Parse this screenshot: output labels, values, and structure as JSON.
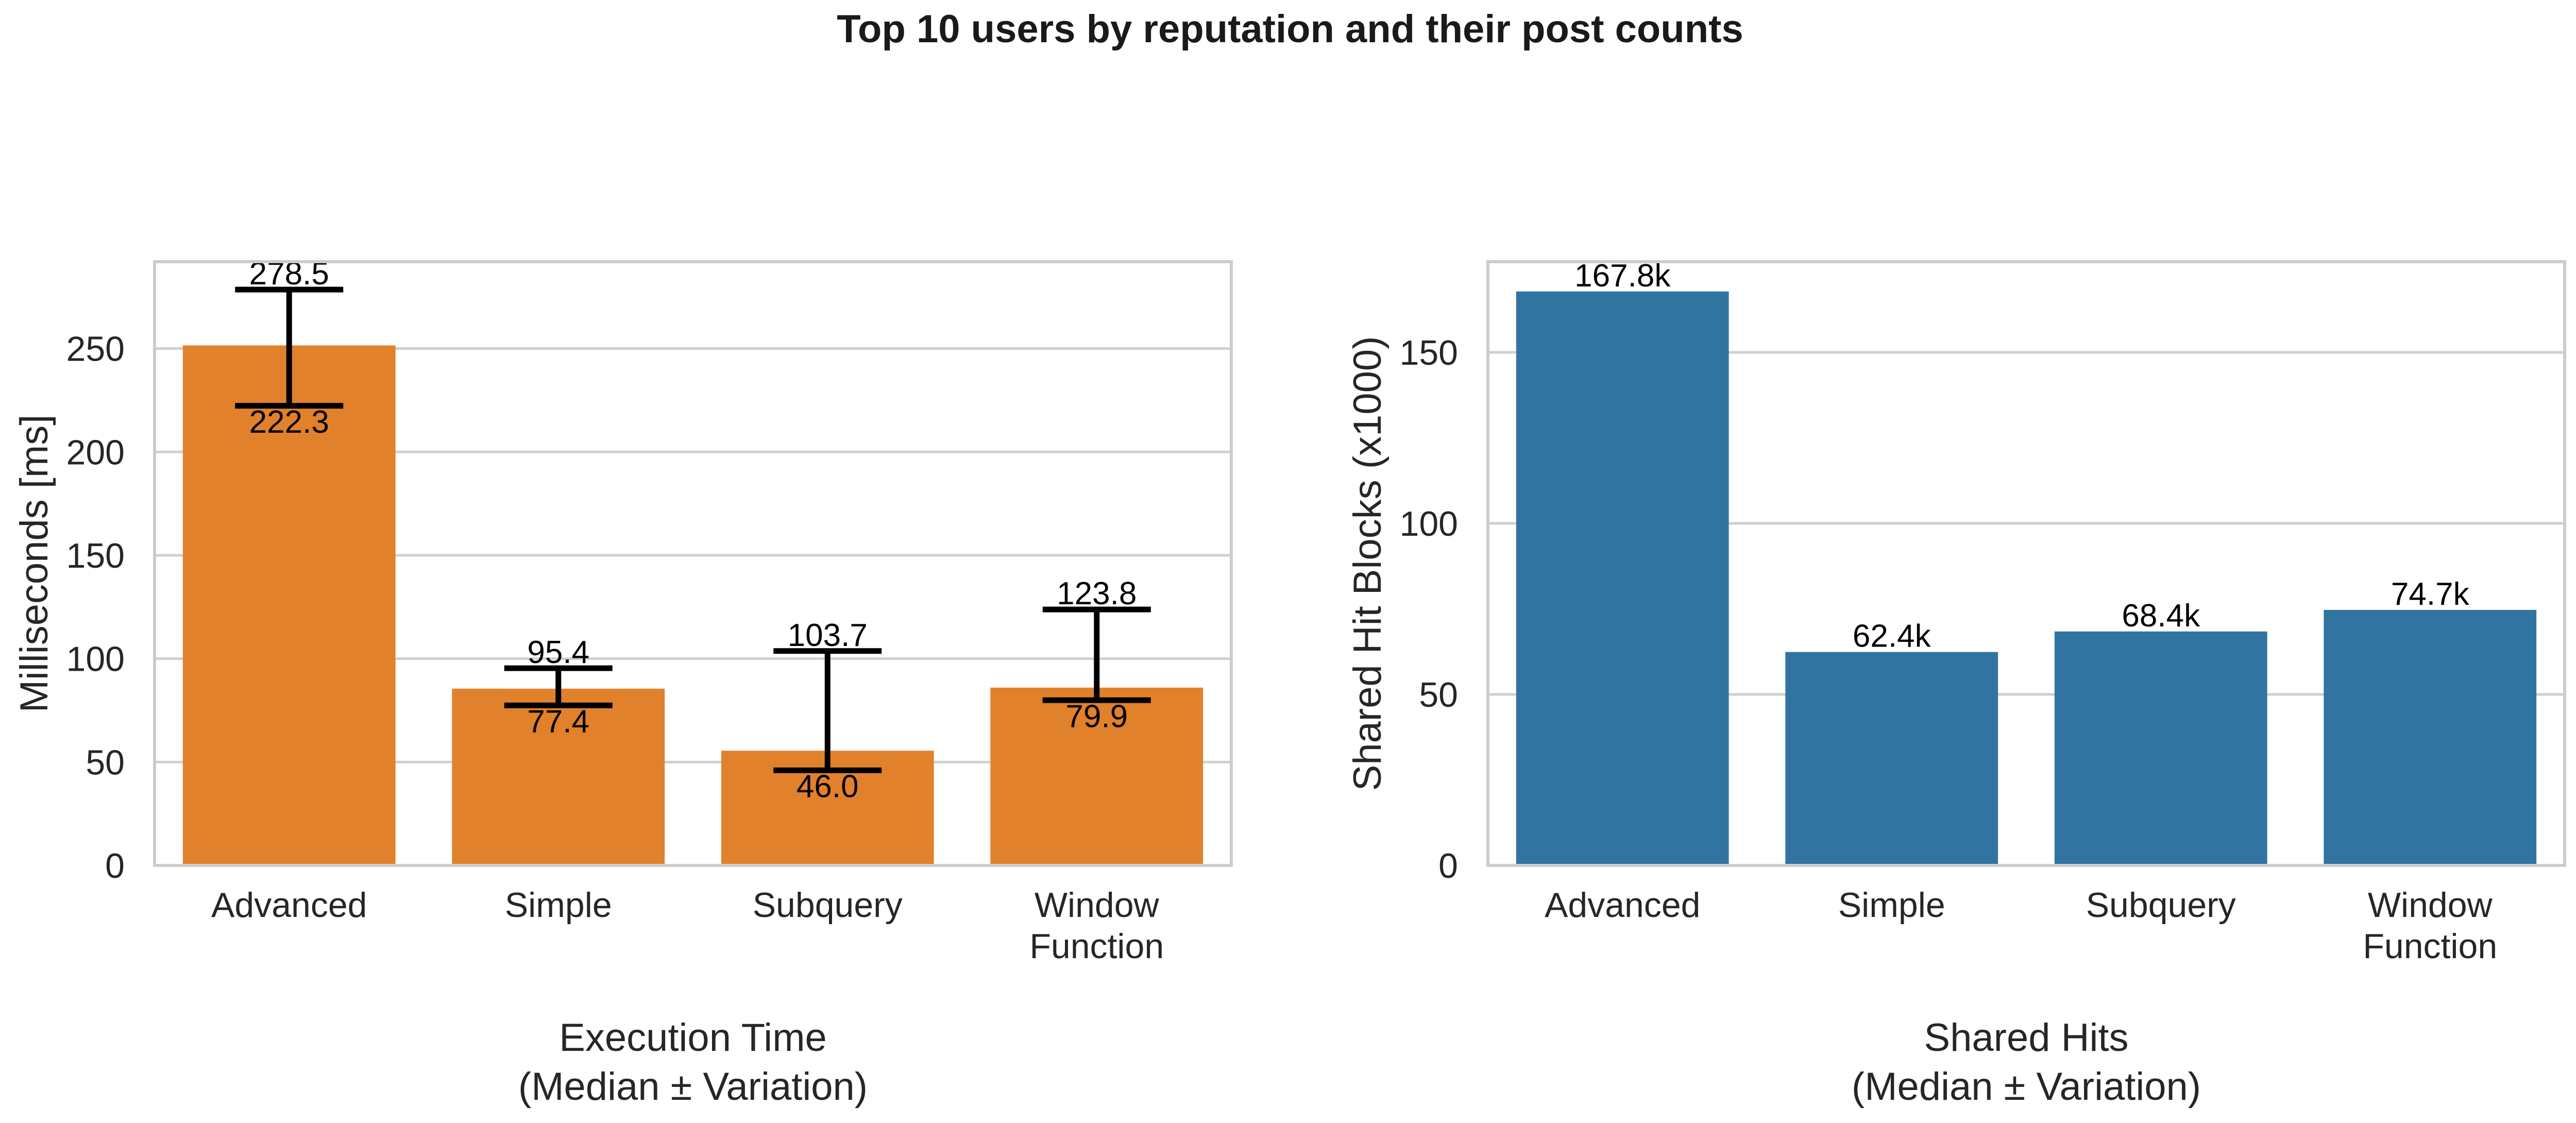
{
  "figure": {
    "title": "Top 10 users by reputation and their post counts"
  },
  "chart_data": [
    {
      "type": "bar",
      "categories": [
        "Advanced",
        "Simple",
        "Subquery",
        "Window Function"
      ],
      "category_lines": [
        [
          "Advanced"
        ],
        [
          "Simple"
        ],
        [
          "Subquery"
        ],
        [
          "Window",
          "Function"
        ]
      ],
      "values": [
        251.5,
        85.5,
        55.5,
        86.0
      ],
      "error_high": [
        278.5,
        95.4,
        103.7,
        123.8
      ],
      "error_low": [
        222.3,
        77.4,
        46.0,
        79.9
      ],
      "error_high_labels": [
        "278.5",
        "95.4",
        "103.7",
        "123.8"
      ],
      "error_low_labels": [
        "222.3",
        "77.4",
        "46.0",
        "79.9"
      ],
      "ylabel": "Milliseconds [ms]",
      "xlabel_lines": [
        "Execution Time",
        "(Median ± Variation)"
      ],
      "ylim": [
        0,
        292
      ],
      "yticks": [
        0,
        50,
        100,
        150,
        200,
        250
      ],
      "color": "#e1812c",
      "grid": true
    },
    {
      "type": "bar",
      "categories": [
        "Advanced",
        "Simple",
        "Subquery",
        "Window Function"
      ],
      "category_lines": [
        [
          "Advanced"
        ],
        [
          "Simple"
        ],
        [
          "Subquery"
        ],
        [
          "Window",
          "Function"
        ]
      ],
      "values": [
        167.8,
        62.4,
        68.4,
        74.7
      ],
      "value_labels": [
        "167.8k",
        "62.4k",
        "68.4k",
        "74.7k"
      ],
      "ylabel": "Shared Hit Blocks (x1000)",
      "xlabel_lines": [
        "Shared Hits",
        "(Median ± Variation)"
      ],
      "ylim": [
        0,
        176.5
      ],
      "yticks": [
        0,
        50,
        100,
        150
      ],
      "color": "#3274a1",
      "grid": true
    }
  ]
}
